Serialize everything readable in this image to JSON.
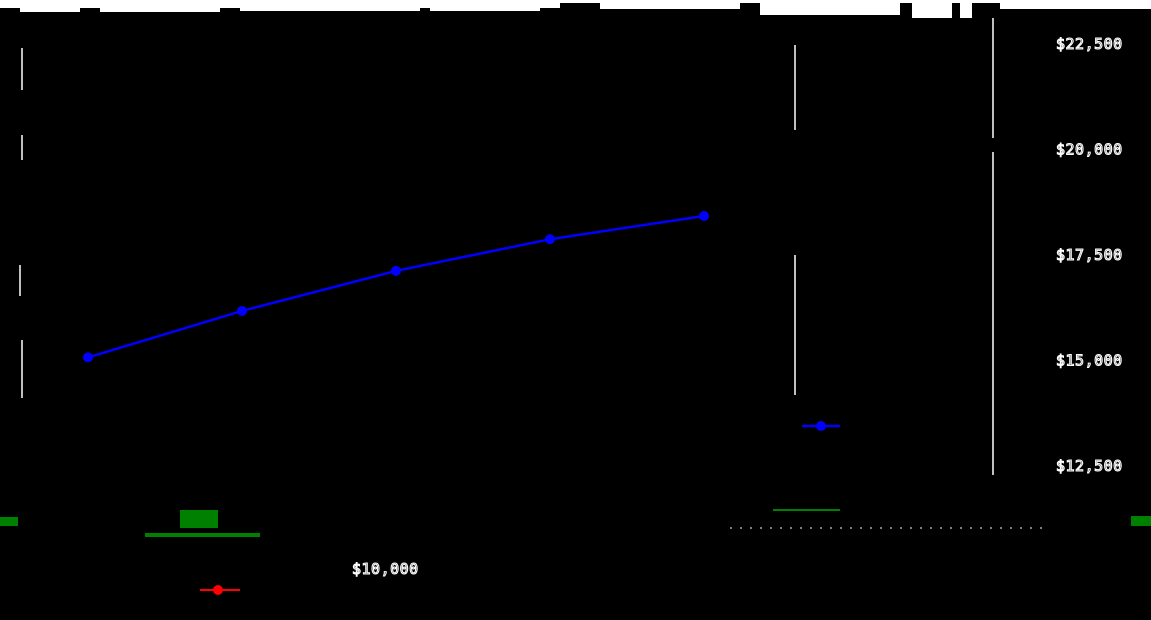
{
  "chart_data": {
    "type": "line",
    "series": [
      {
        "name": "",
        "color": "#0000ff",
        "x": [
          1,
          2,
          3,
          4,
          5
        ],
        "values": [
          15050,
          16150,
          17100,
          17850,
          18400
        ]
      }
    ],
    "y_axis": {
      "side": "right",
      "ylim": [
        12500,
        22500
      ],
      "tick_values": [
        12500,
        15000,
        17500,
        20000,
        22500
      ],
      "tick_labels": [
        "$12,500",
        "$15,000",
        "$17,500",
        "$20,000",
        "$22,500"
      ]
    },
    "extra_labels": [
      "$10,000"
    ],
    "legend_placement": "right",
    "grid": false
  }
}
